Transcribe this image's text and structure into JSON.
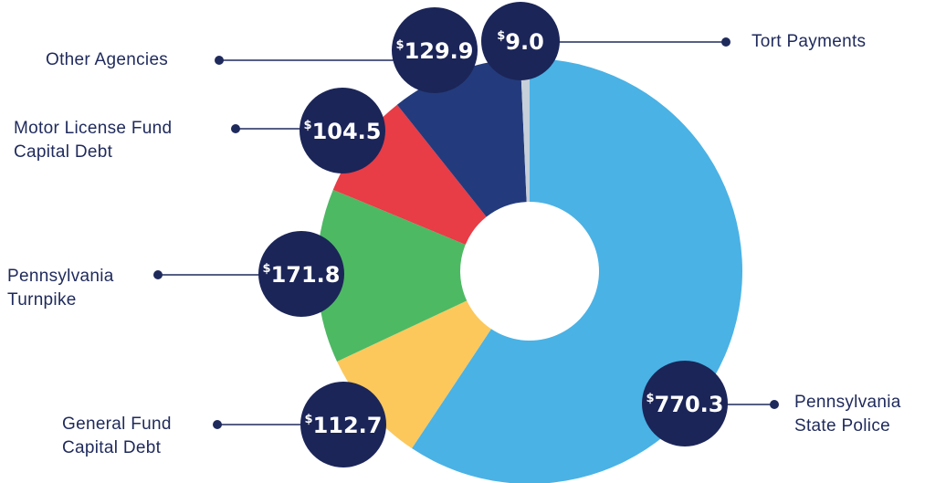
{
  "chart_data": {
    "type": "donut",
    "categories": [
      "Pennsylvania State Police",
      "General Fund Capital Debt",
      "Pennsylvania Turnpike",
      "Motor License Fund Capital Debt",
      "Other Agencies",
      "Tort Payments"
    ],
    "values": [
      770.3,
      112.7,
      171.8,
      104.5,
      129.9,
      9.0
    ],
    "value_labels": [
      "$770.3",
      "$112.7",
      "$171.8",
      "$104.5",
      "$129.9",
      "$9.0"
    ],
    "colors": [
      "#4ab2e5",
      "#fcc85c",
      "#4db963",
      "#e83c46",
      "#233b7c",
      "#c6d0da"
    ]
  }
}
